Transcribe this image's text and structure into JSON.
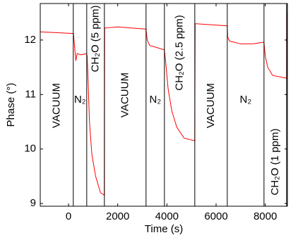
{
  "chart_data": {
    "type": "line",
    "xlabel": "Time (s)",
    "ylabel": "Phase (°)",
    "xlim": [
      -1150,
      8900
    ],
    "ylim": [
      8.95,
      12.67
    ],
    "xticks": [
      0,
      2000,
      4000,
      6000,
      8000
    ],
    "yticks": [
      9,
      10,
      11,
      12
    ],
    "vlines": [
      193,
      740,
      1458,
      3152,
      3899,
      5134,
      6455,
      7948,
      8867
    ],
    "annotations": [
      {
        "text": "VACUUM",
        "color": "#000000"
      },
      {
        "text": "N₂",
        "color": "#0000ff"
      },
      {
        "text": "CH₂O (5 ppm)",
        "color": "#ff0000"
      },
      {
        "text": "VACUUM",
        "color": "#000000"
      },
      {
        "text": "N₂",
        "color": "#0000ff"
      },
      {
        "text": "CH₂O (2.5 ppm)",
        "color": "#ff0000"
      },
      {
        "text": "VACUUM",
        "color": "#000000"
      },
      {
        "text": "N₂",
        "color": "#0000ff"
      },
      {
        "text": "CH₂O (1 ppm)",
        "color": "#ff0000"
      }
    ],
    "series": [
      {
        "name": "Phase",
        "color": "#ff0000",
        "x": [
          -1150,
          200,
          250,
          300,
          350,
          500,
          740,
          760,
          800,
          850,
          950,
          1100,
          1300,
          1458,
          1470,
          2000,
          3152,
          3200,
          3300,
          3899,
          3950,
          4050,
          4200,
          4400,
          4700,
          5134,
          5150,
          6455,
          6470,
          6550,
          7000,
          7500,
          7948,
          8000,
          8100,
          8300,
          8867,
          8880,
          8900
        ],
        "values": [
          12.15,
          12.12,
          11.85,
          11.62,
          11.75,
          11.73,
          11.75,
          11.7,
          11.2,
          10.5,
          9.9,
          9.5,
          9.2,
          9.15,
          12.22,
          12.24,
          12.2,
          12.0,
          11.9,
          11.82,
          11.6,
          11.1,
          10.7,
          10.4,
          10.2,
          10.15,
          12.3,
          12.26,
          12.05,
          11.98,
          11.93,
          11.93,
          11.96,
          11.7,
          11.5,
          11.35,
          11.3,
          12.5,
          12.52
        ]
      }
    ]
  }
}
